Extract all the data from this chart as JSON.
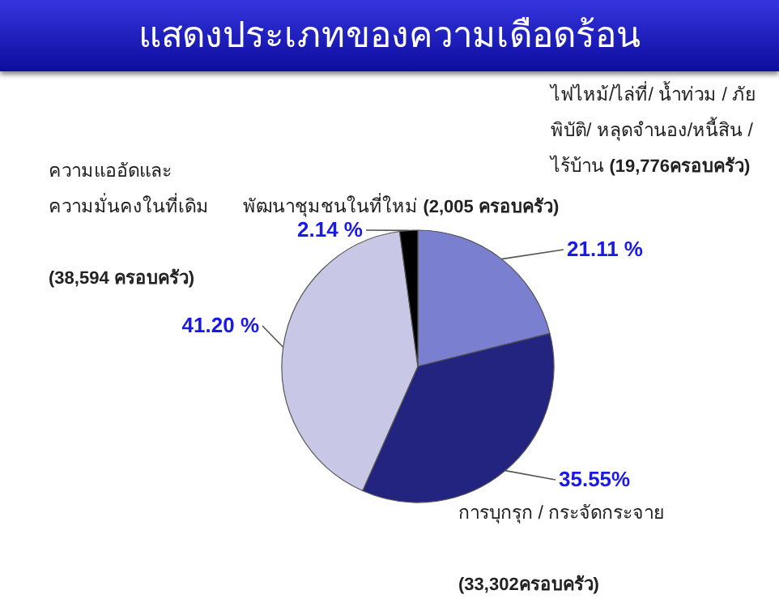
{
  "chart_data": {
    "type": "pie",
    "title": "แสดงประเภทของความเดือดร้อน",
    "categories": [
      "ไฟไหม้/ไล่ที่/ น้ำท่วม / ภัย\nพิบัติ/ หลุดจำนอง/หนี้สิน /\nไร้บ้าน",
      "การบุกรุก / กระจัดกระจาย",
      "ความแออัดและ\nความมั่นคงในที่เดิม",
      "พัฒนาชุมชนในที่ใหม่"
    ],
    "values": [
      21.11,
      35.55,
      41.2,
      2.14
    ],
    "value_labels": [
      "21.11  %",
      "35.55%",
      "41.20 %",
      "2.14 %"
    ],
    "colors": [
      "#7b7fcf",
      "#23247f",
      "#c8c8e6",
      "#000000"
    ],
    "annotations": [
      {
        "text": "(19,776ครอบครัว)",
        "x": "ไฟไหม้/ไล่ที่/ น้ำท่วม / ภัย\nพิบัติ/ หลุดจำนอง/หนี้สิน /\nไร้บ้าน"
      },
      {
        "text": "(33,302ครอบครัว)",
        "x": "การบุกรุก / กระจัดกระจาย"
      },
      {
        "text": "(38,594 ครอบครัว)",
        "x": "ความแออัดและ\nความมั่นคงในที่เดิม"
      },
      {
        "text": "(2,005 ครอบครัว)",
        "x": "พัฒนาชุมชนในที่ใหม่"
      }
    ],
    "legend": false
  }
}
